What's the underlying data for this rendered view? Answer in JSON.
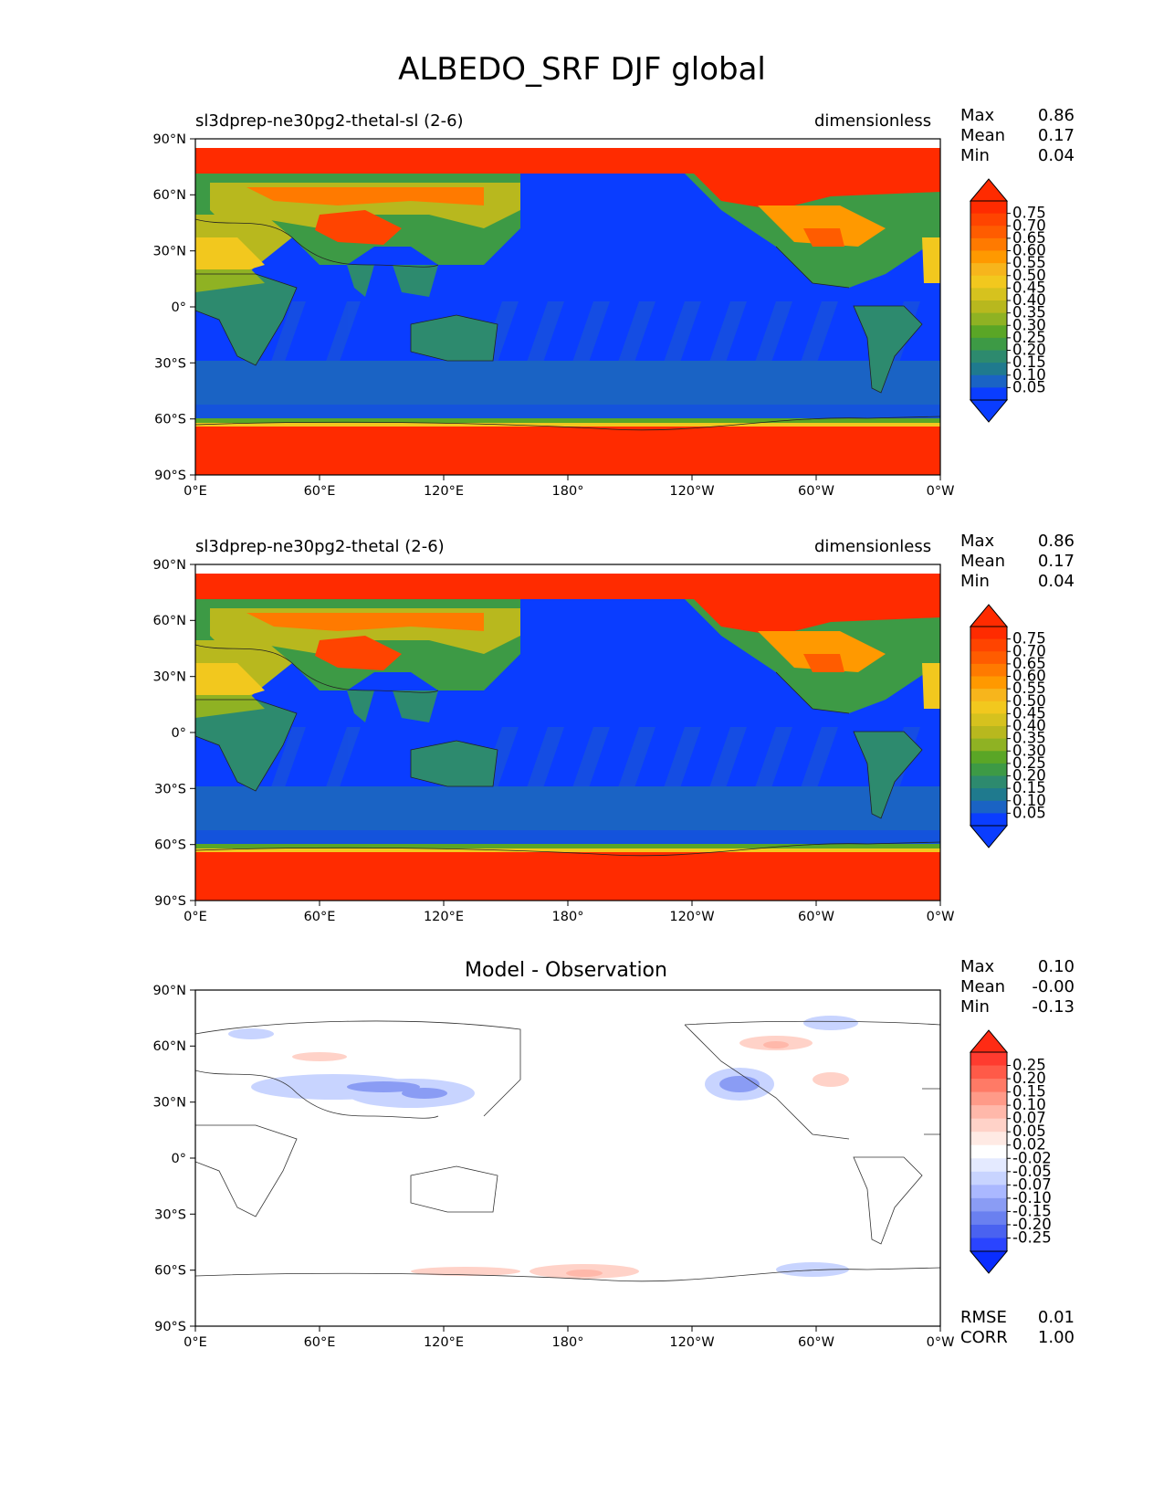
{
  "figure_title": "ALBEDO_SRF DJF global",
  "x_ticks": [
    "0°E",
    "60°E",
    "120°E",
    "180°",
    "120°W",
    "60°W",
    "0°W"
  ],
  "y_ticks": [
    "90°N",
    "60°N",
    "30°N",
    "0°",
    "30°S",
    "60°S",
    "90°S"
  ],
  "panels": [
    {
      "title_left": "sl3dprep-ne30pg2-thetal-sl (2-6)",
      "title_right": "dimensionless",
      "stats": {
        "max_label": "Max",
        "max": "0.86",
        "mean_label": "Mean",
        "mean": "0.17",
        "min_label": "Min",
        "min": "0.04"
      },
      "colorbar": {
        "labels": [
          "0.75",
          "0.70",
          "0.65",
          "0.60",
          "0.55",
          "0.50",
          "0.45",
          "0.40",
          "0.35",
          "0.30",
          "0.25",
          "0.20",
          "0.15",
          "0.10",
          "0.05"
        ],
        "colors": [
          "#ff2b00",
          "#ff4400",
          "#ff5c00",
          "#ff7a00",
          "#ff9900",
          "#f7b51c",
          "#f2c81e",
          "#d6c21e",
          "#b8b81e",
          "#8fb223",
          "#5aa626",
          "#3d9a45",
          "#2d8a6e",
          "#1f7a8e",
          "#1a63c4",
          "#0a3dff"
        ],
        "extend_top": "#ff2b00",
        "extend_bottom": "#0a3dff"
      }
    },
    {
      "title_left": "sl3dprep-ne30pg2-thetal (2-6)",
      "title_right": "dimensionless",
      "stats": {
        "max_label": "Max",
        "max": "0.86",
        "mean_label": "Mean",
        "mean": "0.17",
        "min_label": "Min",
        "min": "0.04"
      },
      "colorbar": {
        "labels": [
          "0.75",
          "0.70",
          "0.65",
          "0.60",
          "0.55",
          "0.50",
          "0.45",
          "0.40",
          "0.35",
          "0.30",
          "0.25",
          "0.20",
          "0.15",
          "0.10",
          "0.05"
        ],
        "colors": [
          "#ff2b00",
          "#ff4400",
          "#ff5c00",
          "#ff7a00",
          "#ff9900",
          "#f7b51c",
          "#f2c81e",
          "#d6c21e",
          "#b8b81e",
          "#8fb223",
          "#5aa626",
          "#3d9a45",
          "#2d8a6e",
          "#1f7a8e",
          "#1a63c4",
          "#0a3dff"
        ],
        "extend_top": "#ff2b00",
        "extend_bottom": "#0a3dff"
      }
    },
    {
      "title_center": "Model - Observation",
      "stats": {
        "max_label": "Max",
        "max": "0.10",
        "mean_label": "Mean",
        "mean": "-0.00",
        "min_label": "Min",
        "min": "-0.13"
      },
      "colorbar": {
        "labels": [
          "0.25",
          "0.20",
          "0.15",
          "0.10",
          "0.07",
          "0.05",
          "0.02",
          "-0.02",
          "-0.05",
          "-0.07",
          "-0.10",
          "-0.15",
          "-0.20",
          "-0.25"
        ],
        "colors": [
          "#ff3b2f",
          "#ff5a48",
          "#ff7a66",
          "#ff9a88",
          "#ffb8aa",
          "#ffd2c8",
          "#ffeae4",
          "#ffffff",
          "#e4eaff",
          "#c8d4ff",
          "#aab8ff",
          "#8a9cf4",
          "#6a80f0",
          "#4a62f0",
          "#2a44ff"
        ],
        "extend_top": "#ff2b14",
        "extend_bottom": "#0a2dff"
      },
      "footer_stats": {
        "rmse_label": "RMSE",
        "rmse": "0.01",
        "corr_label": "CORR",
        "corr": "1.00"
      }
    }
  ]
}
